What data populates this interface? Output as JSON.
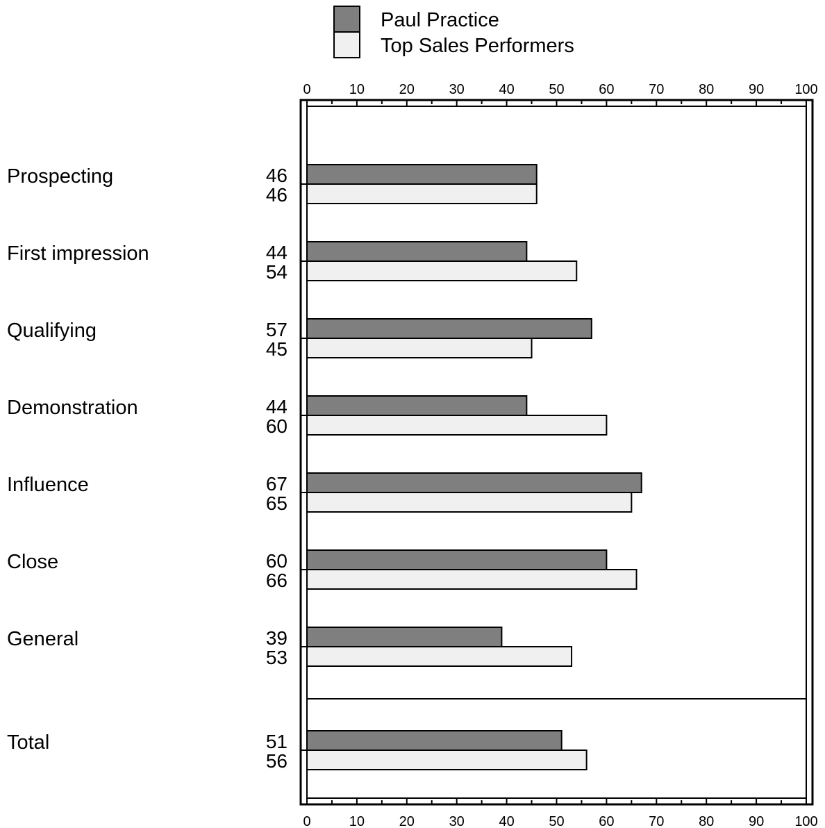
{
  "chart_data": {
    "type": "bar",
    "orientation": "horizontal",
    "categories": [
      "Prospecting",
      "First impression",
      "Qualifying",
      "Demonstration",
      "Influence",
      "Close",
      "General",
      "Total"
    ],
    "series": [
      {
        "name": "Paul Practice",
        "color": "#7f7f7f",
        "values": [
          46,
          44,
          57,
          44,
          67,
          60,
          39,
          51
        ]
      },
      {
        "name": "Top Sales Performers",
        "color": "#f0f0f0",
        "values": [
          46,
          54,
          45,
          60,
          65,
          66,
          53,
          56
        ]
      }
    ],
    "xlim": [
      0,
      100
    ],
    "xticks": [
      "0",
      "10",
      "20",
      "30",
      "40",
      "50",
      "60",
      "70",
      "80",
      "90",
      "100"
    ],
    "axis_position": [
      "top",
      "bottom"
    ],
    "separator_before": "Total",
    "legend_position": "top",
    "grid": false,
    "data_labels": true
  }
}
